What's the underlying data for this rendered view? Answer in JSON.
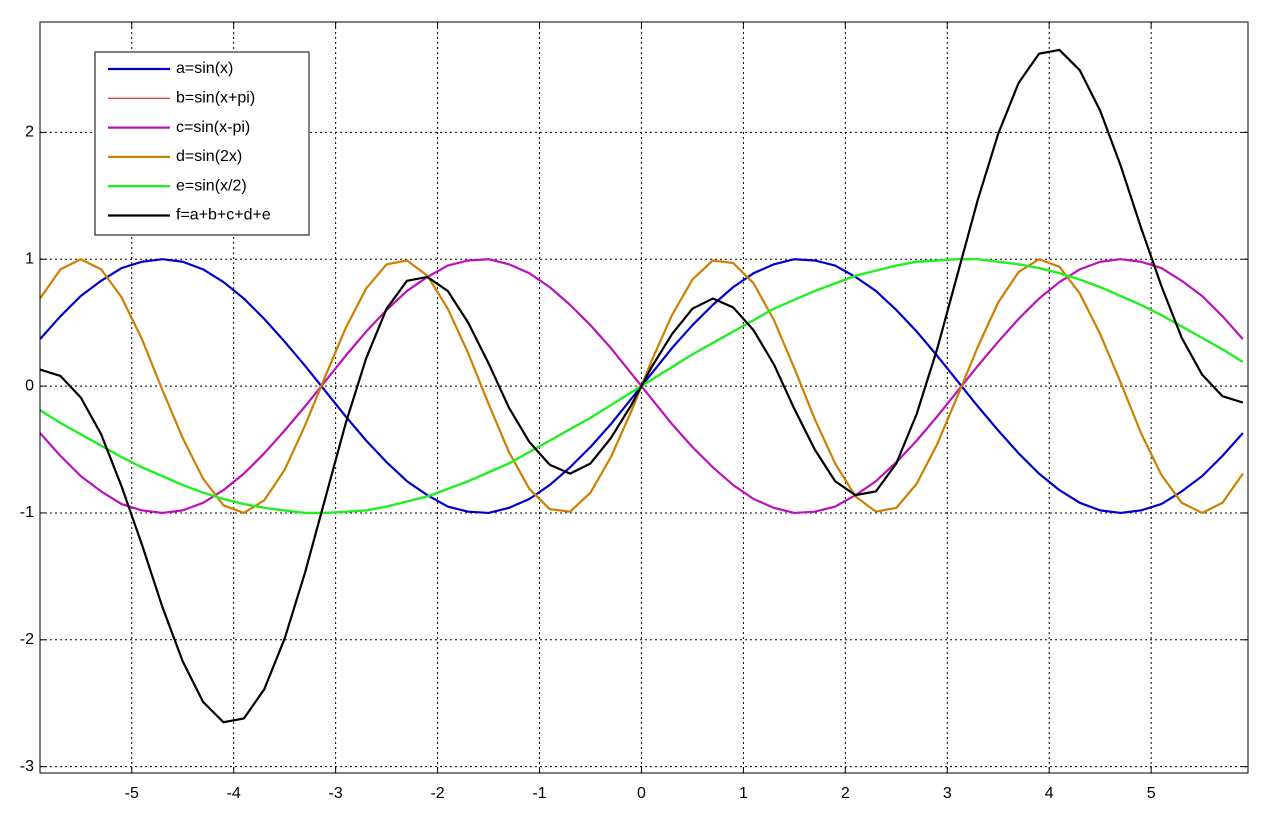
{
  "chart_data": {
    "type": "line",
    "x": [
      -5.9,
      -5.7,
      -5.5,
      -5.3,
      -5.1,
      -4.9,
      -4.7,
      -4.5,
      -4.3,
      -4.1,
      -3.9,
      -3.7,
      -3.5,
      -3.3,
      -3.1,
      -2.9,
      -2.7,
      -2.5,
      -2.3,
      -2.1,
      -1.9,
      -1.7,
      -1.5,
      -1.3,
      -1.1,
      -0.9,
      -0.7,
      -0.5,
      -0.3,
      -0.1,
      0,
      0.1,
      0.3,
      0.5,
      0.7,
      0.9,
      1.1,
      1.3,
      1.5,
      1.7,
      1.9,
      2.1,
      2.3,
      2.5,
      2.7,
      2.9,
      3.1,
      3.3,
      3.5,
      3.7,
      3.9,
      4.1,
      4.3,
      4.5,
      4.7,
      4.9,
      5.1,
      5.3,
      5.5,
      5.7,
      5.9
    ],
    "series": [
      {
        "name": "a=sin(x)",
        "color": "#0000cc",
        "width": 2.2,
        "values": [
          0.37,
          0.55,
          0.71,
          0.83,
          0.93,
          0.98,
          1.0,
          0.98,
          0.92,
          0.82,
          0.69,
          0.53,
          0.35,
          0.16,
          -0.04,
          -0.24,
          -0.43,
          -0.6,
          -0.75,
          -0.86,
          -0.95,
          -0.99,
          -1.0,
          -0.96,
          -0.89,
          -0.78,
          -0.64,
          -0.48,
          -0.3,
          -0.1,
          0,
          0.1,
          0.3,
          0.48,
          0.64,
          0.78,
          0.89,
          0.96,
          1.0,
          0.99,
          0.95,
          0.86,
          0.75,
          0.6,
          0.43,
          0.24,
          0.04,
          -0.16,
          -0.35,
          -0.53,
          -0.69,
          -0.82,
          -0.92,
          -0.98,
          -1.0,
          -0.98,
          -0.93,
          -0.83,
          -0.71,
          -0.55,
          -0.37
        ]
      },
      {
        "name": "b=sin(x+pi)",
        "color": "#cc0000",
        "width": 1,
        "values": [
          -0.37,
          -0.55,
          -0.71,
          -0.83,
          -0.93,
          -0.98,
          -1.0,
          -0.98,
          -0.92,
          -0.82,
          -0.69,
          -0.53,
          -0.35,
          -0.16,
          0.04,
          0.24,
          0.43,
          0.6,
          0.75,
          0.86,
          0.95,
          0.99,
          1.0,
          0.96,
          0.89,
          0.78,
          0.64,
          0.48,
          0.3,
          0.1,
          0,
          -0.1,
          -0.3,
          -0.48,
          -0.64,
          -0.78,
          -0.89,
          -0.96,
          -1.0,
          -0.99,
          -0.95,
          -0.86,
          -0.75,
          -0.6,
          -0.43,
          -0.24,
          -0.04,
          0.16,
          0.35,
          0.53,
          0.69,
          0.82,
          0.92,
          0.98,
          1.0,
          0.98,
          0.93,
          0.83,
          0.71,
          0.55,
          0.37
        ]
      },
      {
        "name": "c=sin(x-pi)",
        "color": "#bb11bb",
        "width": 2.2,
        "values": [
          -0.37,
          -0.55,
          -0.71,
          -0.83,
          -0.93,
          -0.98,
          -1.0,
          -0.98,
          -0.92,
          -0.82,
          -0.69,
          -0.53,
          -0.35,
          -0.16,
          0.04,
          0.24,
          0.43,
          0.6,
          0.75,
          0.86,
          0.95,
          0.99,
          1.0,
          0.96,
          0.89,
          0.78,
          0.64,
          0.48,
          0.3,
          0.1,
          0,
          -0.1,
          -0.3,
          -0.48,
          -0.64,
          -0.78,
          -0.89,
          -0.96,
          -1.0,
          -0.99,
          -0.95,
          -0.86,
          -0.75,
          -0.6,
          -0.43,
          -0.24,
          -0.04,
          0.16,
          0.35,
          0.53,
          0.69,
          0.82,
          0.92,
          0.98,
          1.0,
          0.98,
          0.93,
          0.83,
          0.71,
          0.55,
          0.37
        ]
      },
      {
        "name": "d=sin(2x)",
        "color": "#cc8000",
        "width": 2.2,
        "values": [
          0.69,
          0.92,
          1.0,
          0.92,
          0.7,
          0.37,
          -0.03,
          -0.41,
          -0.73,
          -0.94,
          -1.0,
          -0.9,
          -0.66,
          -0.31,
          0.08,
          0.46,
          0.77,
          0.96,
          0.99,
          0.87,
          0.61,
          0.26,
          -0.14,
          -0.52,
          -0.81,
          -0.97,
          -0.99,
          -0.84,
          -0.56,
          -0.2,
          0,
          0.2,
          0.56,
          0.84,
          0.99,
          0.97,
          0.81,
          0.52,
          0.14,
          -0.26,
          -0.61,
          -0.87,
          -0.99,
          -0.96,
          -0.77,
          -0.46,
          -0.08,
          0.31,
          0.66,
          0.9,
          1.0,
          0.94,
          0.73,
          0.41,
          0.03,
          -0.37,
          -0.7,
          -0.92,
          -1.0,
          -0.92,
          -0.69
        ]
      },
      {
        "name": "e=sin(x/2)",
        "color": "#22ee22",
        "width": 2.4,
        "values": [
          -0.19,
          -0.29,
          -0.38,
          -0.47,
          -0.56,
          -0.64,
          -0.71,
          -0.78,
          -0.84,
          -0.89,
          -0.93,
          -0.96,
          -0.98,
          -1.0,
          -1.0,
          -0.99,
          -0.98,
          -0.95,
          -0.91,
          -0.87,
          -0.81,
          -0.75,
          -0.68,
          -0.61,
          -0.52,
          -0.43,
          -0.34,
          -0.25,
          -0.15,
          -0.05,
          0,
          0.05,
          0.15,
          0.25,
          0.34,
          0.43,
          0.52,
          0.61,
          0.68,
          0.75,
          0.81,
          0.87,
          0.91,
          0.95,
          0.98,
          0.99,
          1.0,
          1.0,
          0.98,
          0.96,
          0.93,
          0.89,
          0.84,
          0.78,
          0.71,
          0.64,
          0.56,
          0.47,
          0.38,
          0.29,
          0.19
        ]
      },
      {
        "name": "f=a+b+c+d+e",
        "color": "#000000",
        "width": 2.2,
        "values": [
          0.13,
          0.08,
          -0.09,
          -0.38,
          -0.79,
          -1.25,
          -1.74,
          -2.17,
          -2.49,
          -2.65,
          -2.62,
          -2.39,
          -1.99,
          -1.47,
          -0.88,
          -0.29,
          0.22,
          0.61,
          0.83,
          0.86,
          0.75,
          0.5,
          0.18,
          -0.17,
          -0.44,
          -0.62,
          -0.69,
          -0.61,
          -0.41,
          -0.15,
          0,
          0.15,
          0.41,
          0.61,
          0.69,
          0.62,
          0.44,
          0.17,
          -0.18,
          -0.5,
          -0.75,
          -0.86,
          -0.83,
          -0.61,
          -0.22,
          0.29,
          0.88,
          1.47,
          1.99,
          2.39,
          2.62,
          2.65,
          2.49,
          2.17,
          1.74,
          1.25,
          0.79,
          0.38,
          0.09,
          -0.08,
          -0.13
        ]
      }
    ],
    "xlim": [
      -5.9,
      5.95
    ],
    "ylim": [
      -3.05,
      2.87
    ],
    "xticks": [
      -5,
      -4,
      -3,
      -2,
      -1,
      0,
      1,
      2,
      3,
      4,
      5
    ],
    "yticks": [
      -3,
      -2,
      -1,
      0,
      1,
      2
    ],
    "grid": true,
    "legend": "upper left"
  }
}
